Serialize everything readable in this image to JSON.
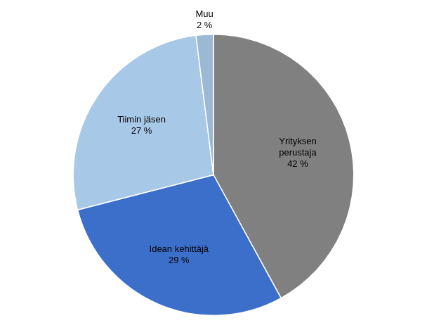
{
  "chart_data": {
    "type": "pie",
    "categories": [
      "Yrityksen\nperustaja\n42 %",
      "Idean kehittäjä\n29 %",
      "Tiimin jäsen\n27 %",
      "Muu\n2 %"
    ],
    "values": [
      42,
      29,
      27,
      2
    ],
    "colors": [
      "#808080",
      "#3B6FC9",
      "#A8C8E8",
      "#9BB8D4"
    ],
    "legend": false
  }
}
